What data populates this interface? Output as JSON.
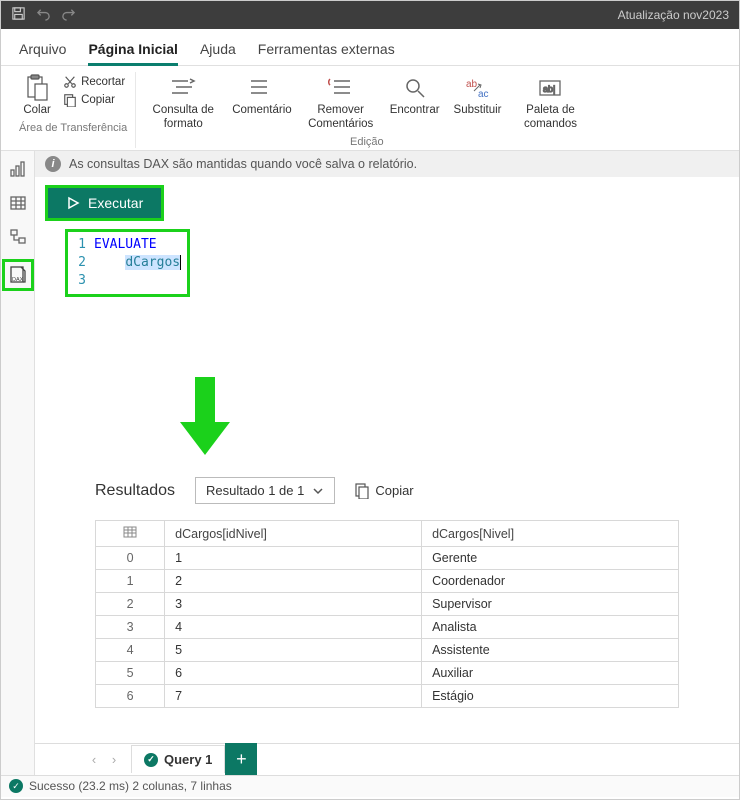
{
  "title_bar": {
    "title": "Atualização nov2023"
  },
  "menu": {
    "tabs": [
      {
        "label": "Arquivo",
        "active": false
      },
      {
        "label": "Página Inicial",
        "active": true
      },
      {
        "label": "Ajuda",
        "active": false
      },
      {
        "label": "Ferramentas externas",
        "active": false
      }
    ]
  },
  "ribbon": {
    "group1": {
      "paste": "Colar",
      "cut": "Recortar",
      "copy": "Copiar",
      "label": "Área de Transferência"
    },
    "group2": {
      "format_query": "Consulta de formato",
      "comment": "Comentário",
      "remove_comments": "Remover Comentários",
      "find": "Encontrar",
      "replace": "Substituir",
      "command_palette": "Paleta de comandos",
      "label": "Edição"
    }
  },
  "info_bar": {
    "text": "As consultas DAX são mantidas quando você salva o relatório."
  },
  "exec": {
    "label": "Executar"
  },
  "editor": {
    "lines": [
      {
        "n": "1",
        "keyword": "EVALUATE"
      },
      {
        "n": "2",
        "indent": true,
        "table": "dCargos"
      },
      {
        "n": "3"
      }
    ]
  },
  "highlight_color": "#1bd11b",
  "results": {
    "title": "Resultados",
    "selector": "Resultado 1 de 1",
    "copy": "Copiar",
    "columns": [
      "dCargos[idNivel]",
      "dCargos[Nivel]"
    ],
    "rows": [
      [
        "0",
        "1",
        "Gerente"
      ],
      [
        "1",
        "2",
        "Coordenador"
      ],
      [
        "2",
        "3",
        "Supervisor"
      ],
      [
        "3",
        "4",
        "Analista"
      ],
      [
        "4",
        "5",
        "Assistente"
      ],
      [
        "5",
        "6",
        "Auxiliar"
      ],
      [
        "6",
        "7",
        "Estágio"
      ]
    ]
  },
  "query_tabs": {
    "tab1": "Query 1",
    "add": "+"
  },
  "status": {
    "text": "Sucesso (23.2 ms) 2 colunas, 7 linhas"
  },
  "colors": {
    "teal": "#0c7864",
    "dark_bar": "#3d3d3d",
    "highlight": "#1bd11b"
  }
}
